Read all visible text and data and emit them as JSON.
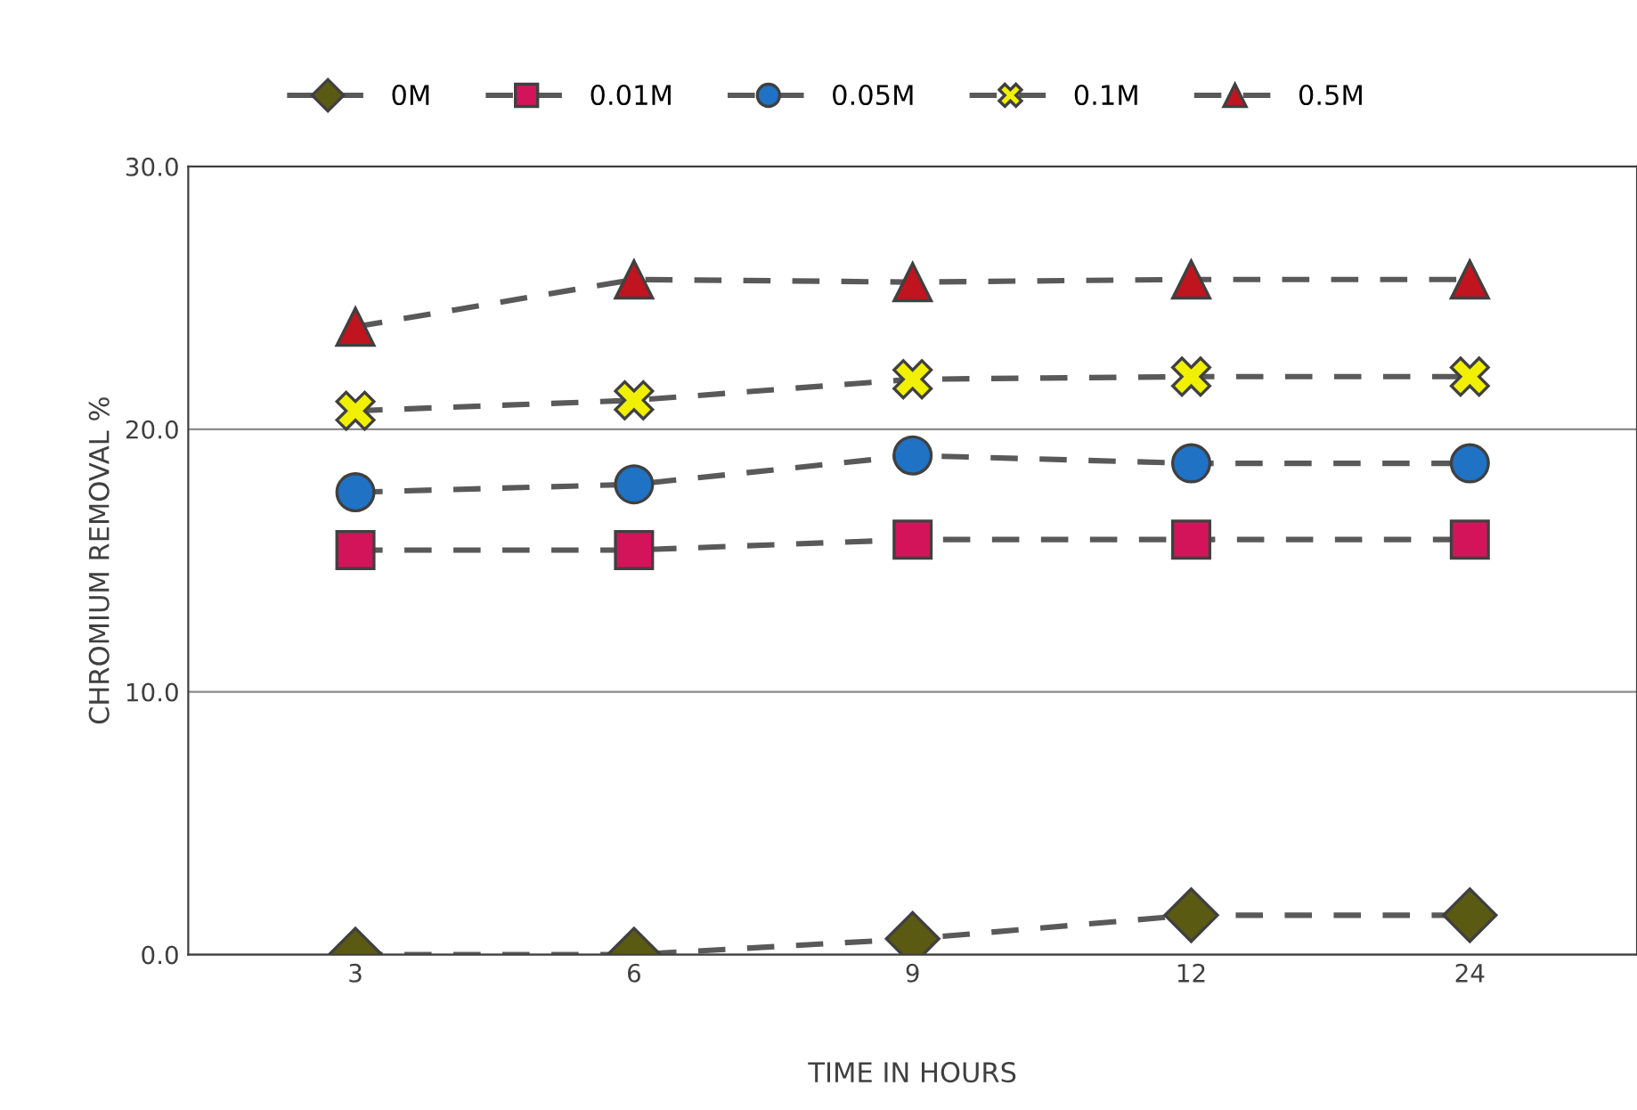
{
  "chart_data": {
    "type": "line",
    "xlabel": "TIME IN HOURS",
    "ylabel": "CHROMIUM REMOVAL %",
    "categories": [
      "3",
      "6",
      "9",
      "12",
      "24"
    ],
    "series": [
      {
        "name": "0M",
        "color": "#5a5a12",
        "marker": "diamond",
        "values": [
          0.0,
          0.0,
          0.6,
          1.5,
          1.5
        ]
      },
      {
        "name": "0.01M",
        "color": "#d4145a",
        "marker": "square",
        "values": [
          15.4,
          15.4,
          15.8,
          15.8,
          15.8
        ]
      },
      {
        "name": "0.05M",
        "color": "#1f72c4",
        "marker": "circle",
        "values": [
          17.6,
          17.9,
          19.0,
          18.7,
          18.7
        ]
      },
      {
        "name": "0.1M",
        "color": "#f0f000",
        "marker": "cross",
        "values": [
          20.7,
          21.1,
          21.9,
          22.0,
          22.0
        ]
      },
      {
        "name": "0.5M",
        "color": "#c0141e",
        "marker": "triangle",
        "values": [
          23.9,
          25.7,
          25.6,
          25.7,
          25.7
        ]
      }
    ],
    "ylim": [
      0,
      30
    ],
    "yticks": [
      {
        "value": 0,
        "label": "0.0"
      },
      {
        "value": 10,
        "label": "10.0"
      },
      {
        "value": 20,
        "label": "20.0"
      },
      {
        "value": 30,
        "label": "30.0"
      }
    ],
    "grid": "y",
    "legend": "top",
    "line_style": "dashed"
  }
}
